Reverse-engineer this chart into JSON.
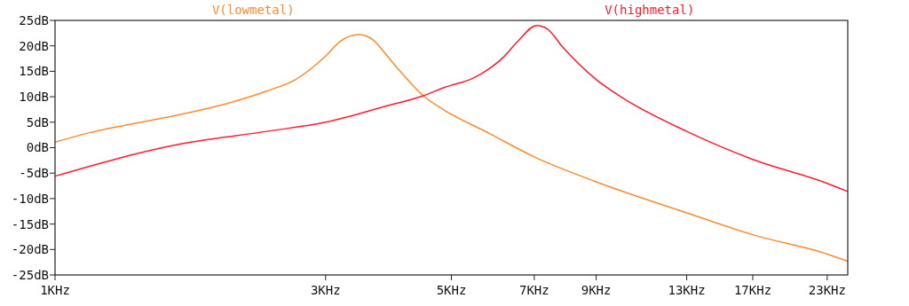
{
  "chart_data": {
    "type": "line",
    "log": "x",
    "grid": false,
    "legend": "top",
    "marker": "none",
    "line_style": "solid",
    "xlim": [
      1,
      25
    ],
    "ylim": [
      -25,
      25
    ],
    "xticks": [
      {
        "value": 1,
        "label": "1KHz"
      },
      {
        "value": 3,
        "label": "3KHz"
      },
      {
        "value": 5,
        "label": "5KHz"
      },
      {
        "value": 7,
        "label": "7KHz"
      },
      {
        "value": 9,
        "label": "9KHz"
      },
      {
        "value": 13,
        "label": "13KHz"
      },
      {
        "value": 17,
        "label": "17KHz"
      },
      {
        "value": 23,
        "label": "23KHz"
      }
    ],
    "yticks": [
      {
        "value": 25,
        "label": "25dB"
      },
      {
        "value": 20,
        "label": "20dB"
      },
      {
        "value": 15,
        "label": "15dB"
      },
      {
        "value": 10,
        "label": "10dB"
      },
      {
        "value": 5,
        "label": "5dB"
      },
      {
        "value": 0,
        "label": "0dB"
      },
      {
        "value": -5,
        "label": "-5dB"
      },
      {
        "value": -10,
        "label": "-10dB"
      },
      {
        "value": -15,
        "label": "-15dB"
      },
      {
        "value": -20,
        "label": "-20dB"
      },
      {
        "value": -25,
        "label": "-25dB"
      }
    ],
    "series": [
      {
        "name": "V(lowmetal)",
        "color": "#ff8a2a",
        "x": [
          1,
          1.147,
          1.644,
          1.97,
          2.359,
          2.657,
          3,
          3.185,
          3.433,
          3.636,
          3.815,
          4.053,
          4.461,
          4.852,
          5.81,
          7,
          9,
          13,
          17,
          23,
          25
        ],
        "values": [
          1.1,
          2.9,
          6.4,
          8.4,
          11.1,
          13.4,
          18.0,
          20.9,
          22.2,
          21.2,
          18.6,
          15.1,
          10.2,
          7.4,
          2.9,
          -1.8,
          -6.7,
          -12.8,
          -17.1,
          -20.9,
          -22.3
        ]
      },
      {
        "name": "V(highmetal)",
        "color": "#ff1a2e",
        "x": [
          1,
          1.644,
          2.359,
          3,
          3.815,
          4.461,
          4.852,
          5.47,
          5.81,
          6.17,
          6.55,
          7.07,
          7.39,
          7.85,
          9,
          9.98,
          13,
          17,
          23,
          25
        ],
        "values": [
          -5.6,
          0.6,
          3.2,
          5.0,
          8.1,
          10.2,
          11.8,
          13.7,
          15.4,
          17.7,
          20.9,
          24.0,
          23.3,
          19.8,
          13.4,
          9.9,
          3.2,
          -2.3,
          -7.0,
          -8.6
        ]
      }
    ]
  }
}
